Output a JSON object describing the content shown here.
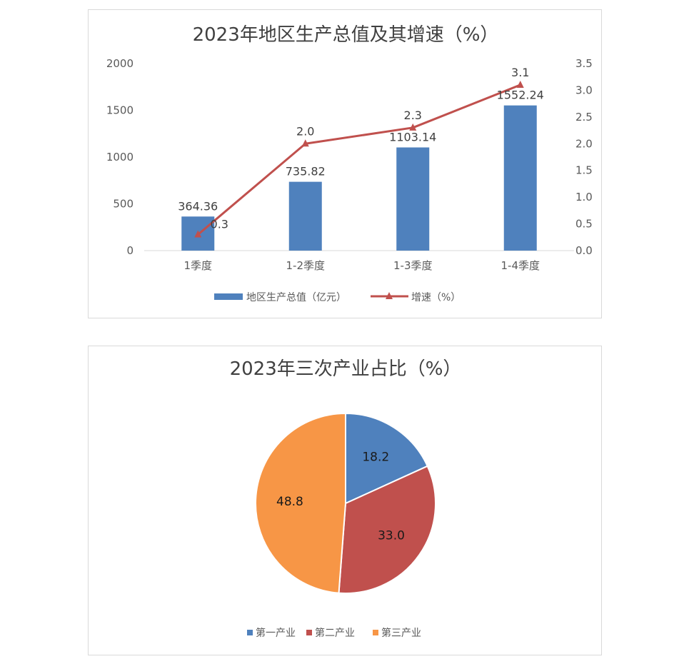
{
  "chart_data": [
    {
      "type": "bar",
      "title": "2023年地区生产总值及其增速（%）",
      "categories": [
        "1季度",
        "1-2季度",
        "1-3季度",
        "1-4季度"
      ],
      "series": [
        {
          "name": "地区生产总值（亿元）",
          "type": "bar",
          "axis": "left",
          "values": [
            364.36,
            735.82,
            1103.14,
            1552.24
          ],
          "labels": [
            "364.36",
            "735.82",
            "1103.14",
            "1552.24"
          ],
          "color": "#4f81bd"
        },
        {
          "name": "增速（%）",
          "type": "line",
          "axis": "right",
          "marker": "triangle",
          "values": [
            0.3,
            2.0,
            2.3,
            3.1
          ],
          "labels": [
            "0.3",
            "2.0",
            "2.3",
            "3.1"
          ],
          "color": "#c0504d"
        }
      ],
      "ylim": [
        0,
        2000
      ],
      "yticks": [
        "0",
        "500",
        "1000",
        "1500",
        "2000"
      ],
      "y2lim": [
        0,
        3.5
      ],
      "y2ticks": [
        "0.0",
        "0.5",
        "1.0",
        "1.5",
        "2.0",
        "2.5",
        "3.0",
        "3.5"
      ],
      "grid": false,
      "legend": "bottom"
    },
    {
      "type": "pie",
      "title": "2023年三次产业占比（%）",
      "categories": [
        "第一产业",
        "第二产业",
        "第三产业"
      ],
      "values": [
        18.2,
        33.0,
        48.8
      ],
      "labels": [
        "18.2",
        "33.0",
        "48.8"
      ],
      "colors": [
        "#4f81bd",
        "#c0504d",
        "#f79646"
      ],
      "legend": "bottom"
    }
  ]
}
